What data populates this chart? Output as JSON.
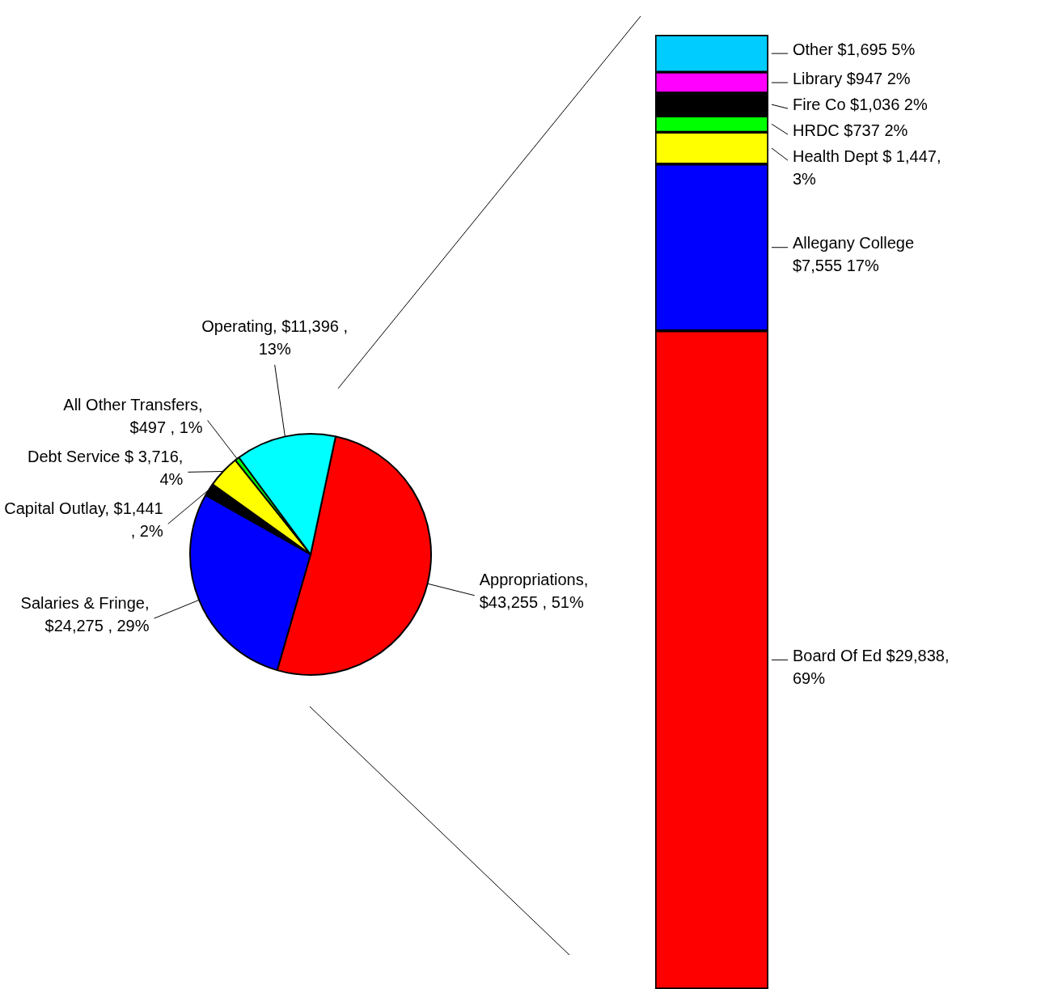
{
  "chart_data": [
    {
      "type": "pie",
      "categories": [
        "Appropriations",
        "Salaries & Fringe",
        "Capital Outlay",
        "Debt Service",
        "All Other Transfers",
        "Operating"
      ],
      "values": [
        43255,
        24275,
        1441,
        3716,
        497,
        11396
      ],
      "colors": [
        "#ff0000",
        "#0000ff",
        "#000000",
        "#ffff00",
        "#00ff00",
        "#00ffff"
      ],
      "value_labels": [
        ", $43,255 , 51%",
        ", $24,275 , 29%",
        ", $1,441 , 2%",
        " $ 3,716, 4%",
        ", $497 , 1%",
        ", $11,396 , 13%"
      ]
    },
    {
      "type": "bar",
      "stacked": true,
      "categories": [
        null
      ],
      "series": [
        {
          "name": "Board Of Ed",
          "color": "#ff0000",
          "values": [
            29838
          ],
          "value_labels": [
            " $29,838, 69%"
          ]
        },
        {
          "name": "Allegany College",
          "color": "#0000ff",
          "values": [
            7555
          ],
          "value_labels": [
            " $7,555 17%"
          ]
        },
        {
          "name": "Health Dept",
          "color": "#ffff00",
          "values": [
            1447
          ],
          "value_labels": [
            " $ 1,447, 3%"
          ]
        },
        {
          "name": "HRDC",
          "color": "#00ff00",
          "values": [
            737
          ],
          "value_labels": [
            " $737 2%"
          ]
        },
        {
          "name": "Fire Co",
          "color": "#000000",
          "values": [
            1036
          ],
          "value_labels": [
            " $1,036 2%"
          ]
        },
        {
          "name": "Library",
          "color": "#ff00ff",
          "values": [
            947
          ],
          "value_labels": [
            " $947 2%"
          ]
        },
        {
          "name": "Other",
          "color": "#00ccff",
          "values": [
            1695
          ],
          "value_labels": [
            " $1,695 5%"
          ]
        }
      ]
    }
  ]
}
